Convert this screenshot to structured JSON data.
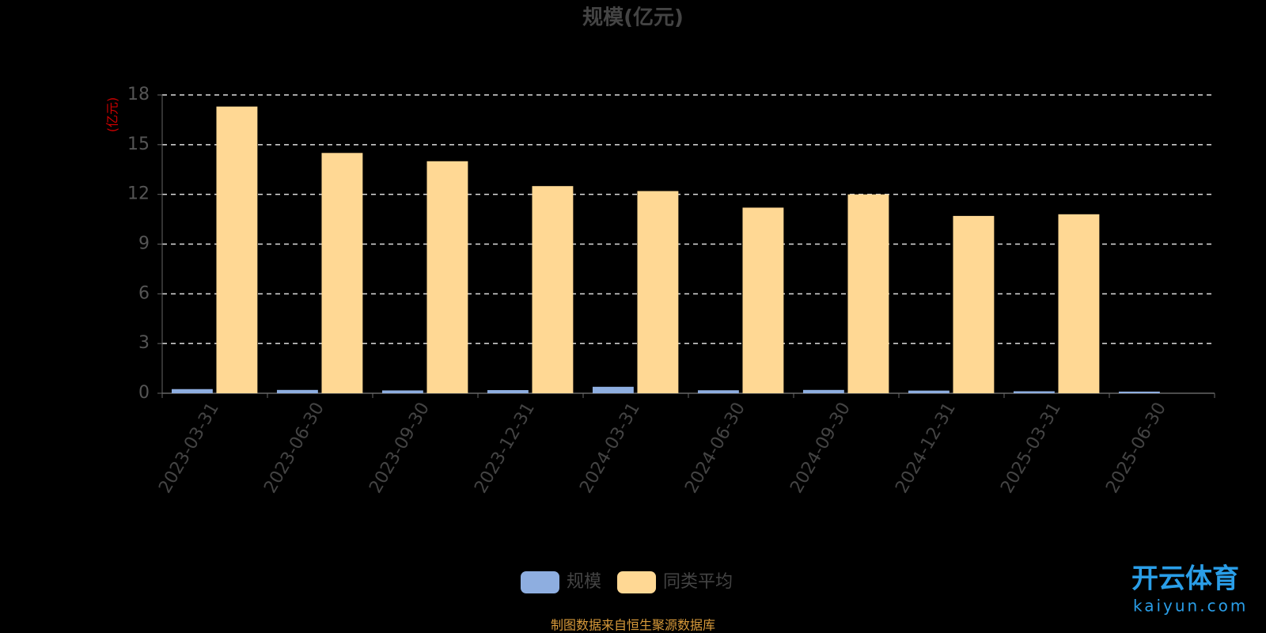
{
  "chart_data": {
    "type": "bar",
    "title": "规模(亿元)",
    "y_label": "(亿元)",
    "categories": [
      "2023-03-31",
      "2023-06-30",
      "2023-09-30",
      "2023-12-31",
      "2024-03-31",
      "2024-06-30",
      "2024-09-30",
      "2024-12-31",
      "2025-03-31",
      "2025-06-30"
    ],
    "series": [
      {
        "name": "规模",
        "color": "#8eaee0",
        "values": [
          0.25,
          0.2,
          0.17,
          0.19,
          0.39,
          0.18,
          0.2,
          0.16,
          0.12,
          0.1
        ]
      },
      {
        "name": "同类平均",
        "color": "#ffd894",
        "values": [
          17.3,
          14.5,
          14.0,
          12.5,
          12.2,
          11.2,
          12.0,
          10.7,
          10.8,
          null
        ]
      }
    ],
    "ylim": [
      0,
      18
    ],
    "yticks": [
      0,
      3,
      6,
      9,
      12,
      15,
      18
    ],
    "grid": true,
    "source": "制图数据来自恒生聚源数据库",
    "watermark": {
      "name": "开云体育",
      "url": "kaiyun.com"
    }
  }
}
